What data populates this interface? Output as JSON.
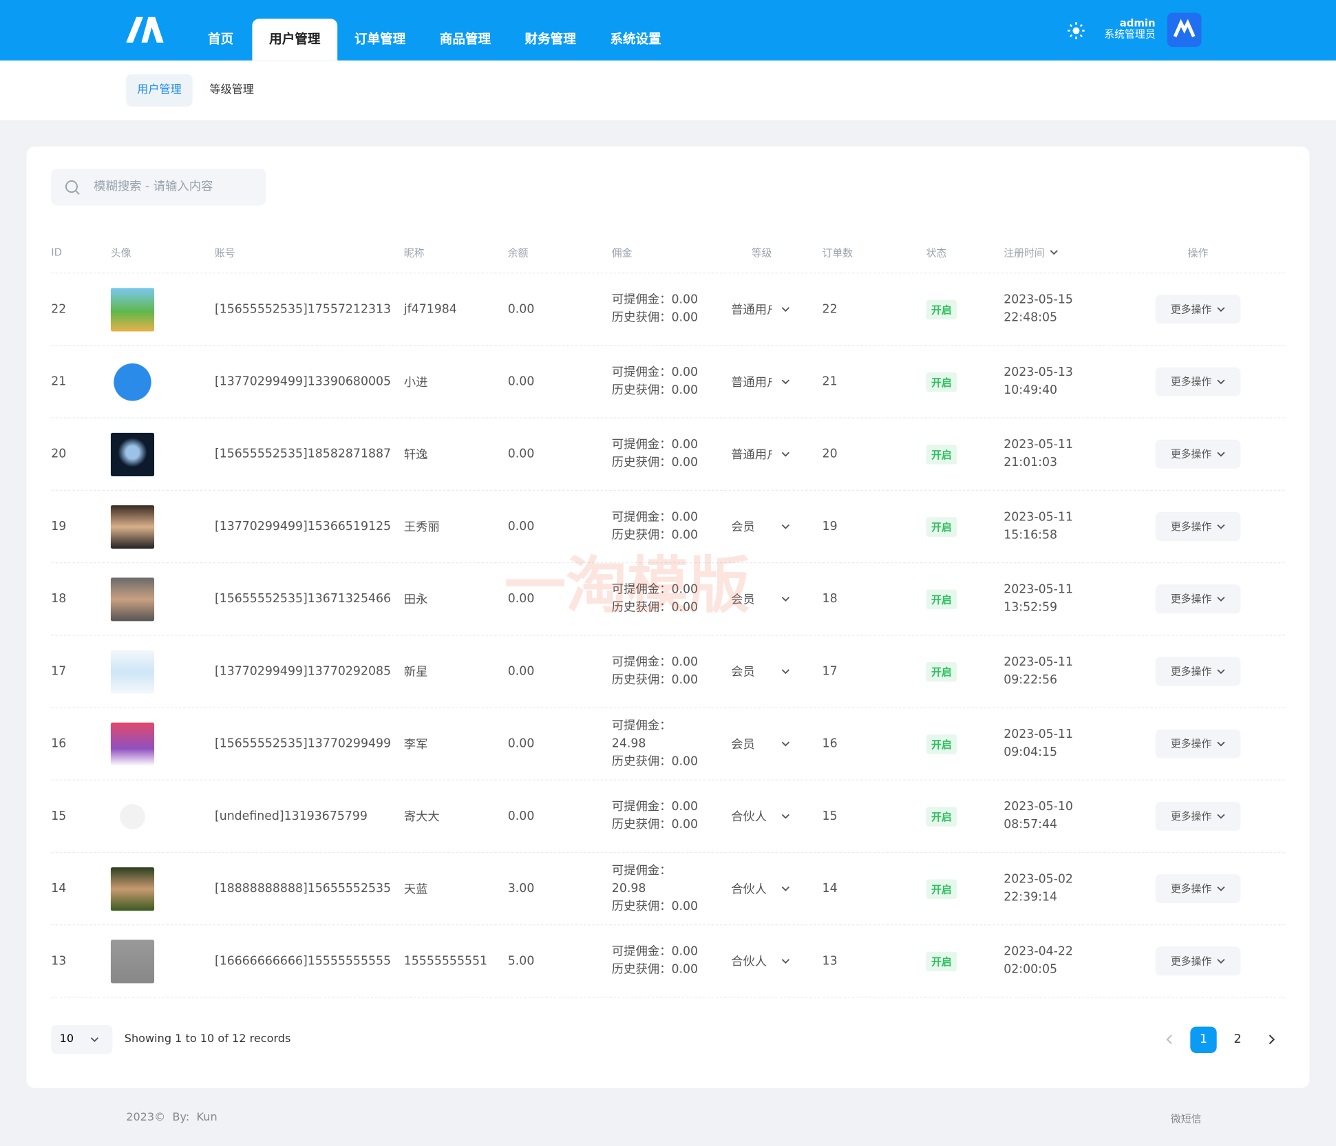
{
  "header": {
    "nav": [
      "首页",
      "用户管理",
      "订单管理",
      "商品管理",
      "财务管理",
      "系统设置"
    ],
    "active_tab": 1,
    "user": "admin",
    "role": "系统管理员"
  },
  "subnav": {
    "tabs": [
      "用户管理",
      "等级管理"
    ],
    "active_tab": 0
  },
  "search": {
    "placeholder": "模糊搜索 - 请输入内容"
  },
  "table": {
    "columns": [
      "ID",
      "头像",
      "账号",
      "昵称",
      "余额",
      "佣金",
      "等级",
      "订单数",
      "状态",
      "注册时间",
      "操作"
    ],
    "commission_labels": [
      "可提佣金：",
      "历史获佣："
    ],
    "rows": [
      {
        "id": 22,
        "account": "[15655552535]17557212313",
        "nickname": "jf471984",
        "balance": "0.00",
        "withdrawable": "0.00",
        "earned": "0.00",
        "level": "普通用户",
        "orders": 22,
        "status": "开启",
        "reg_date": "2023-05-15",
        "reg_time": "22:48:05",
        "action": "更多操作"
      },
      {
        "id": 21,
        "account": "[13770299499]13390680005",
        "nickname": "小进",
        "balance": "0.00",
        "withdrawable": "0.00",
        "earned": "0.00",
        "level": "普通用户",
        "orders": 21,
        "status": "开启",
        "reg_date": "2023-05-13",
        "reg_time": "10:49:40",
        "action": "更多操作"
      },
      {
        "id": 20,
        "account": "[15655552535]18582871887",
        "nickname": "轩逸",
        "balance": "0.00",
        "withdrawable": "0.00",
        "earned": "0.00",
        "level": "普通用户",
        "orders": 20,
        "status": "开启",
        "reg_date": "2023-05-11",
        "reg_time": "21:01:03",
        "action": "更多操作"
      },
      {
        "id": 19,
        "account": "[13770299499]15366519125",
        "nickname": "王秀丽",
        "balance": "0.00",
        "withdrawable": "0.00",
        "earned": "0.00",
        "level": "会员",
        "orders": 19,
        "status": "开启",
        "reg_date": "2023-05-11",
        "reg_time": "15:16:58",
        "action": "更多操作"
      },
      {
        "id": 18,
        "account": "[15655552535]13671325466",
        "nickname": "田永",
        "balance": "0.00",
        "withdrawable": "0.00",
        "earned": "0.00",
        "level": "会员",
        "orders": 18,
        "status": "开启",
        "reg_date": "2023-05-11",
        "reg_time": "13:52:59",
        "action": "更多操作"
      },
      {
        "id": 17,
        "account": "[13770299499]13770292085",
        "nickname": "新星",
        "balance": "0.00",
        "withdrawable": "0.00",
        "earned": "0.00",
        "level": "会员",
        "orders": 17,
        "status": "开启",
        "reg_date": "2023-05-11",
        "reg_time": "09:22:56",
        "action": "更多操作"
      },
      {
        "id": 16,
        "account": "[15655552535]13770299499",
        "nickname": "李军",
        "balance": "0.00",
        "withdrawable": "24.98",
        "earned": "0.00",
        "level": "会员",
        "orders": 16,
        "status": "开启",
        "reg_date": "2023-05-11",
        "reg_time": "09:04:15",
        "action": "更多操作"
      },
      {
        "id": 15,
        "account": "[undefined]13193675799",
        "nickname": "寄大大",
        "balance": "0.00",
        "withdrawable": "0.00",
        "earned": "0.00",
        "level": "合伙人",
        "orders": 15,
        "status": "开启",
        "reg_date": "2023-05-10",
        "reg_time": "08:57:44",
        "action": "更多操作"
      },
      {
        "id": 14,
        "account": "[18888888888]15655552535",
        "nickname": "天蓝",
        "balance": "3.00",
        "withdrawable": "20.98",
        "earned": "0.00",
        "level": "合伙人",
        "orders": 14,
        "status": "开启",
        "reg_date": "2023-05-02",
        "reg_time": "22:39:14",
        "action": "更多操作"
      },
      {
        "id": 13,
        "account": "[16666666666]15555555555",
        "nickname": "15555555551",
        "balance": "5.00",
        "withdrawable": "0.00",
        "earned": "0.00",
        "level": "合伙人",
        "orders": 13,
        "status": "开启",
        "reg_date": "2023-04-22",
        "reg_time": "02:00:05",
        "action": "更多操作"
      }
    ]
  },
  "pagination": {
    "page_size": "10",
    "summary": "Showing 1 to 10 of 12 records",
    "pages": [
      1,
      2
    ],
    "current": 1
  },
  "footer": {
    "copyright": "2023©  By:  Kun",
    "link": "微短信"
  },
  "watermark": "一淘模版"
}
